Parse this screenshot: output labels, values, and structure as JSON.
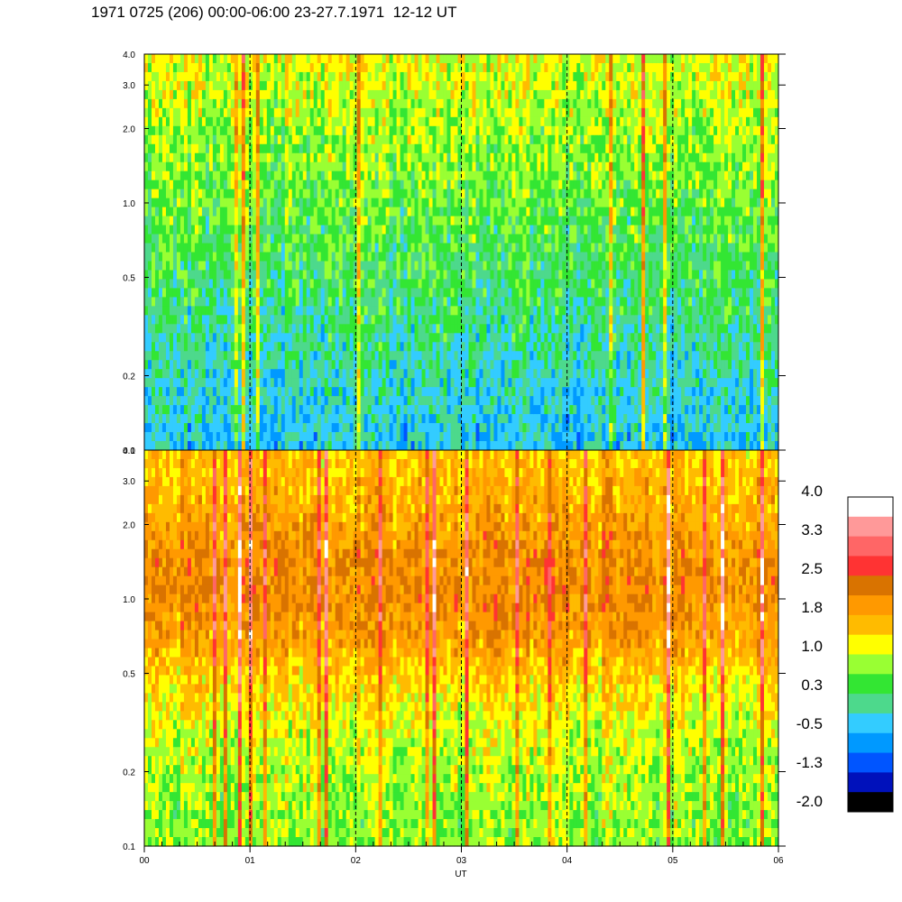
{
  "title": "1971 0725 (206) 00:00-06:00 23-27.7.1971  12-12 UT",
  "chart_data": {
    "type": "heatmap",
    "panels": [
      {
        "name": "",
        "base_level": 0.2,
        "ylim": [
          0.1,
          4.0
        ],
        "y_scale": "log"
      },
      {
        "name": "",
        "base_level": 1.6,
        "ylim": [
          0.1,
          4.0
        ],
        "y_scale": "log"
      }
    ],
    "x_ticks": [
      "00",
      "01",
      "02",
      "03",
      "04",
      "05",
      "06"
    ],
    "x_range": [
      0,
      6
    ],
    "xlabel": "UT",
    "y_ticks": [
      "4.0",
      "3.0",
      "2.0",
      "1.0",
      "0.5",
      "0.2",
      "0.1"
    ],
    "y_tick_values": [
      4.0,
      3.0,
      2.0,
      1.0,
      0.5,
      0.2,
      0.1
    ],
    "colorbar": {
      "labels": [
        "4.0",
        "3.3",
        "2.5",
        "1.8",
        "1.0",
        "0.3",
        "-0.5",
        "-1.3",
        "-2.0"
      ],
      "colors": [
        "#ffffff",
        "#ff9999",
        "#ff6666",
        "#ff3333",
        "#d97300",
        "#ff9900",
        "#ffbb00",
        "#ffff00",
        "#99ff33",
        "#33e633",
        "#4dd98c",
        "#33ccff",
        "#0099ff",
        "#0055ff",
        "#0011bb",
        "#000000"
      ]
    },
    "grid": "vertical dashed lines at each hour"
  }
}
